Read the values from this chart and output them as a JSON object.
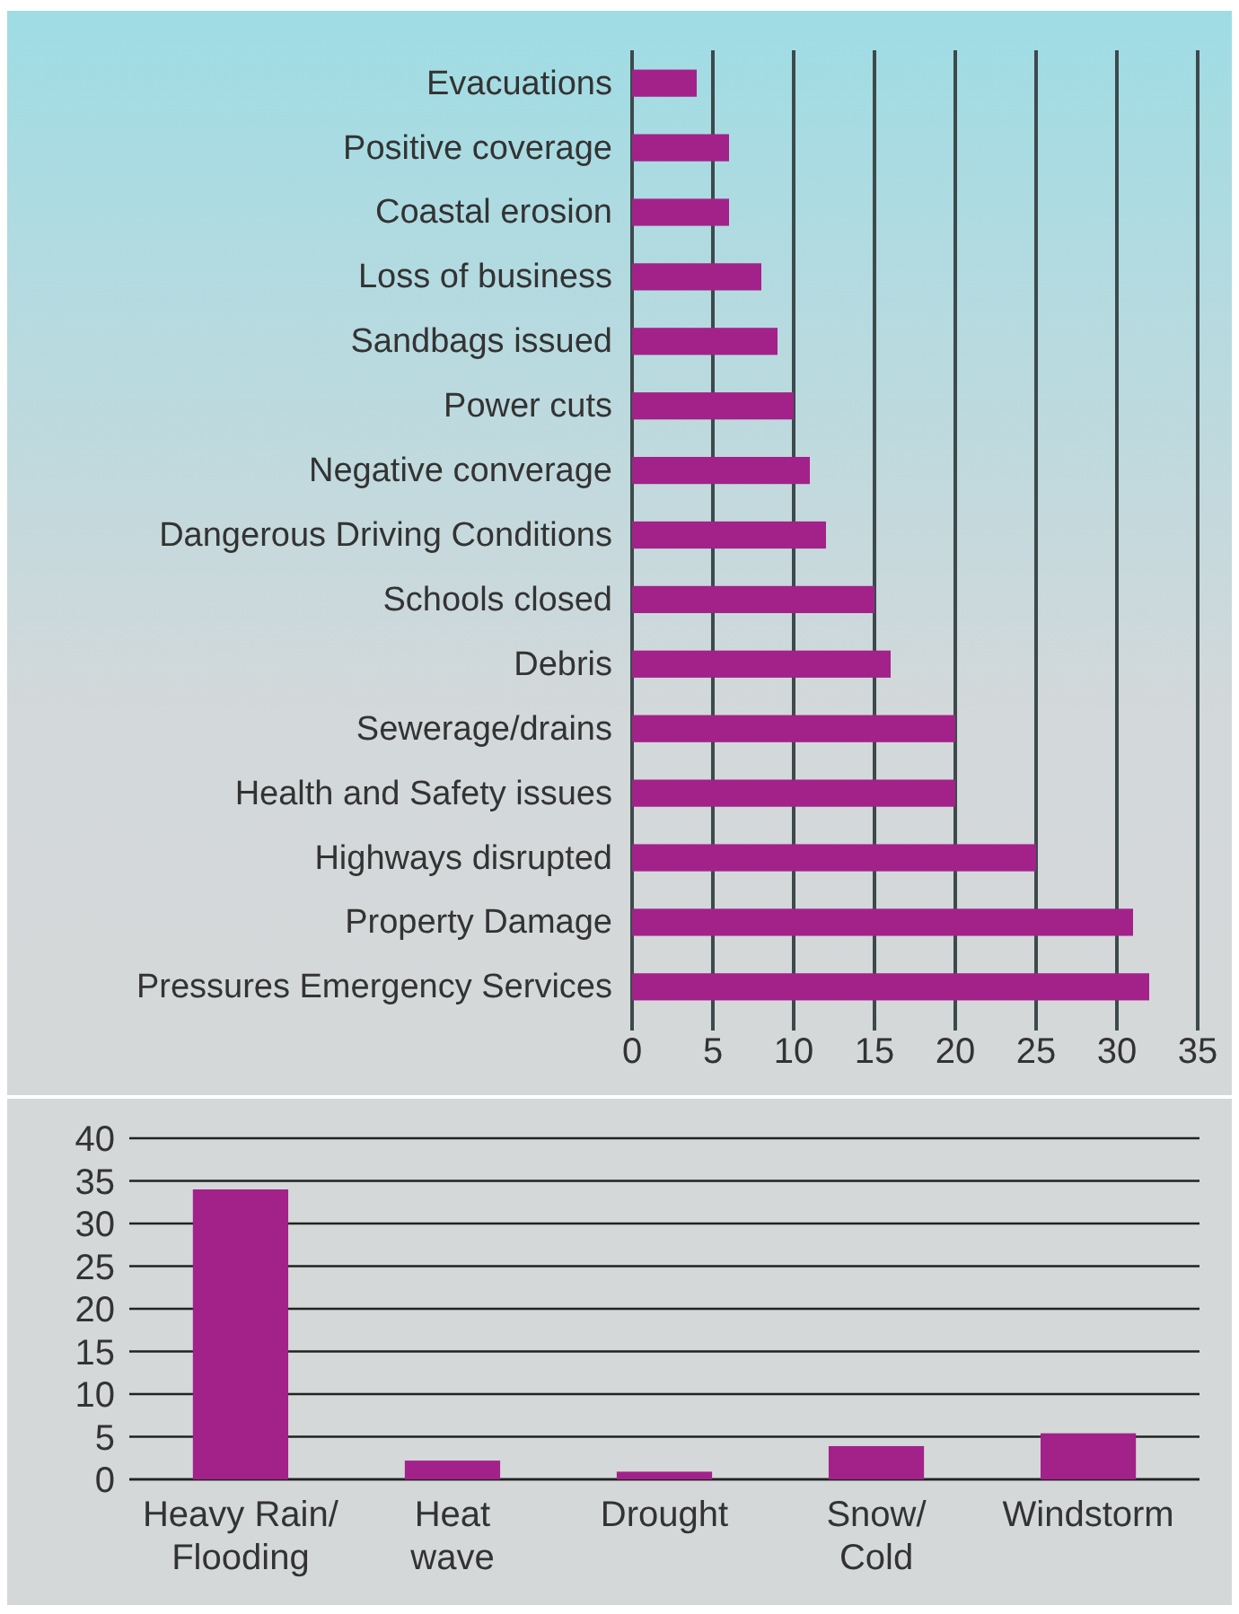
{
  "chart_data": [
    {
      "type": "bar",
      "orientation": "horizontal",
      "categories": [
        "Evacuations",
        "Positive coverage",
        "Coastal erosion",
        "Loss of business",
        "Sandbags issued",
        "Power cuts",
        "Negative converage",
        "Dangerous Driving Conditions",
        "Schools closed",
        "Debris",
        "Sewerage/drains",
        "Health and Safety issues",
        "Highways disrupted",
        "Property Damage",
        "Pressures Emergency Services"
      ],
      "values": [
        4,
        6,
        6,
        8,
        9,
        10,
        11,
        12,
        15,
        16,
        20,
        20,
        25,
        31,
        32
      ],
      "color": "#a2228a",
      "xlim": [
        0,
        35
      ],
      "xticks": [
        0,
        5,
        10,
        15,
        20,
        25,
        30,
        35
      ],
      "grid": "x"
    },
    {
      "type": "bar",
      "categories": [
        "Heavy Rain/\nFlooding",
        "Heat\nwave",
        "Drought",
        "Snow/\nCold",
        "Windstorm"
      ],
      "values": [
        34,
        2.2,
        0.9,
        3.9,
        5.4
      ],
      "color": "#a2228a",
      "ylim": [
        0,
        40
      ],
      "yticks": [
        0,
        5,
        10,
        15,
        20,
        25,
        30,
        35,
        40
      ],
      "grid": "y"
    }
  ]
}
